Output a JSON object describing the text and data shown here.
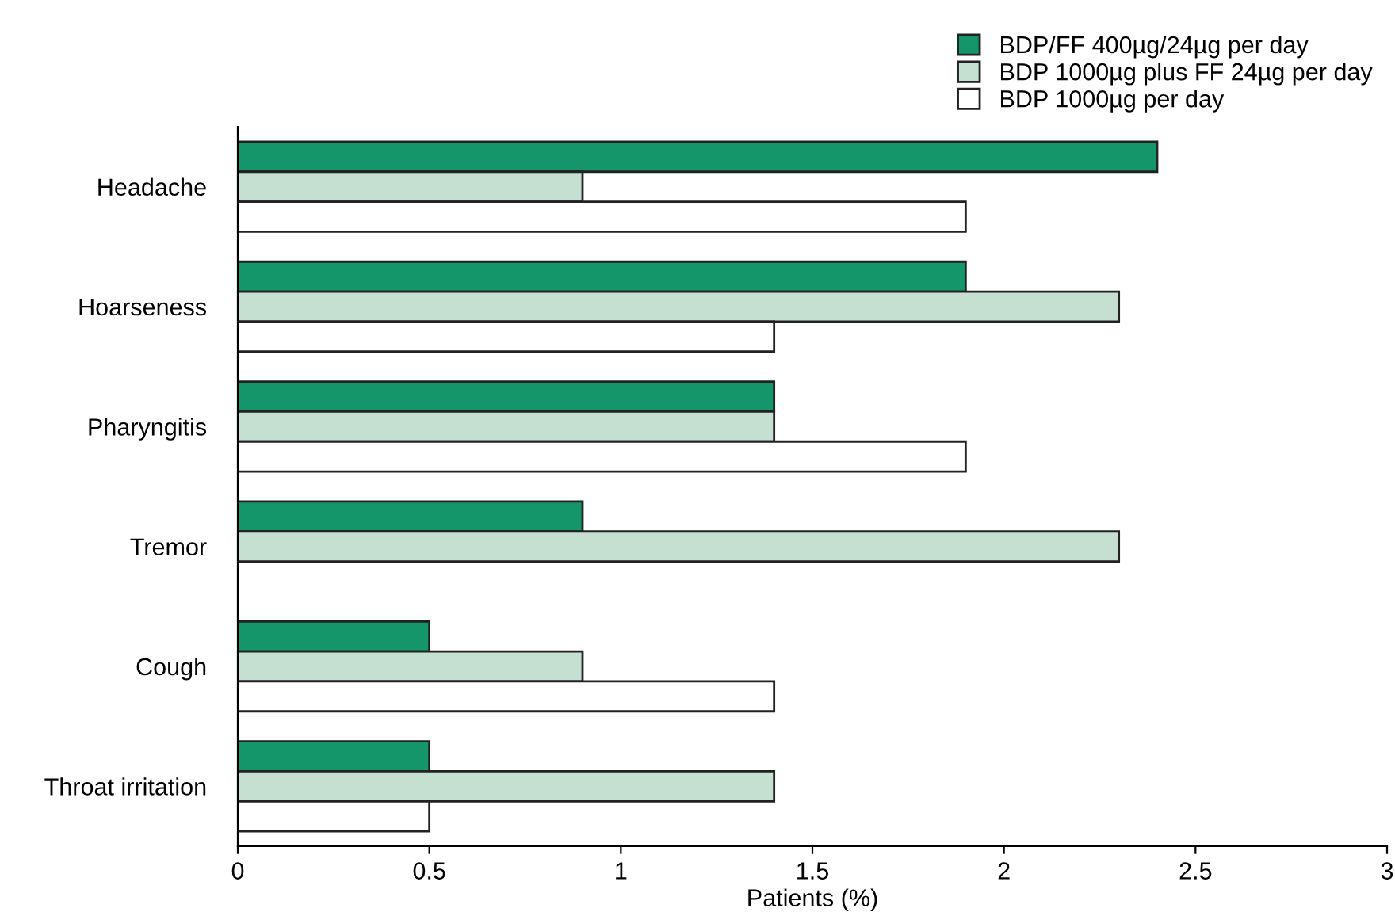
{
  "chart_data": {
    "type": "bar",
    "orientation": "horizontal",
    "xlabel": "Patients (%)",
    "categories": [
      "Headache",
      "Hoarseness",
      "Pharyngitis",
      "Tremor",
      "Cough",
      "Throat irritation"
    ],
    "series": [
      {
        "name": "BDP/FF 400µg/24µg per day",
        "color": "#14966a",
        "values": [
          2.4,
          1.9,
          1.4,
          0.9,
          0.5,
          0.5
        ]
      },
      {
        "name": "BDP 1000µg plus FF 24µg per day",
        "color": "#c5e0d0",
        "values": [
          0.9,
          2.3,
          1.4,
          2.3,
          0.9,
          1.4
        ]
      },
      {
        "name": "BDP 1000µg per day",
        "color": "#ffffff",
        "values": [
          1.9,
          1.4,
          1.9,
          null,
          1.4,
          0.5
        ]
      }
    ],
    "xlim": [
      0,
      3
    ],
    "xticks": [
      0,
      0.5,
      1,
      1.5,
      2,
      2.5,
      3
    ],
    "grid": false,
    "legend": "top right"
  }
}
